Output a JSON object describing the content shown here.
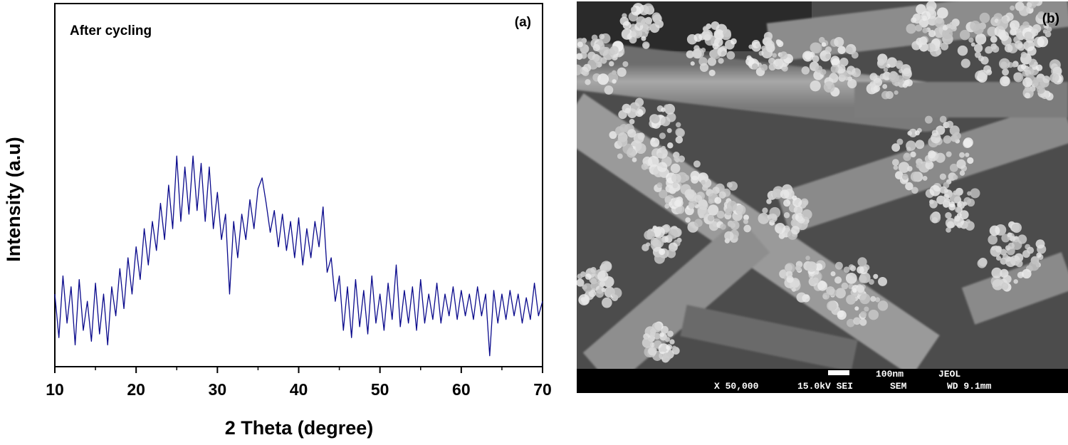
{
  "chart_data": {
    "type": "line",
    "annotation": "After cycling",
    "panel_label": "(a)",
    "x_label": "2 Theta (degree)",
    "y_label": "Intensity (a.u)",
    "xlim": [
      10,
      70
    ],
    "xticks": [
      10,
      20,
      30,
      40,
      50,
      60,
      70
    ],
    "ylim": [
      0,
      100
    ],
    "x": [
      10,
      10.5,
      11,
      11.5,
      12,
      12.5,
      13,
      13.5,
      14,
      14.5,
      15,
      15.5,
      16,
      16.5,
      17,
      17.5,
      18,
      18.5,
      19,
      19.5,
      20,
      20.5,
      21,
      21.5,
      22,
      22.5,
      23,
      23.5,
      24,
      24.5,
      25,
      25.5,
      26,
      26.5,
      27,
      27.5,
      28,
      28.5,
      29,
      29.5,
      30,
      30.5,
      31,
      31.5,
      32,
      32.5,
      33,
      33.5,
      34,
      34.5,
      35,
      35.5,
      36,
      36.5,
      37,
      37.5,
      38,
      38.5,
      39,
      39.5,
      40,
      40.5,
      41,
      41.5,
      42,
      42.5,
      43,
      43.5,
      44,
      44.5,
      45,
      45.5,
      46,
      46.5,
      47,
      47.5,
      48,
      48.5,
      49,
      49.5,
      50,
      50.5,
      51,
      51.5,
      52,
      52.5,
      53,
      53.5,
      54,
      54.5,
      55,
      55.5,
      56,
      56.5,
      57,
      57.5,
      58,
      58.5,
      59,
      59.5,
      60,
      60.5,
      61,
      61.5,
      62,
      62.5,
      63,
      63.5,
      64,
      64.5,
      65,
      65.5,
      66,
      66.5,
      67,
      67.5,
      68,
      68.5,
      69,
      69.5,
      70
    ],
    "series": [
      {
        "color": "#0a0a8c",
        "values": [
          20,
          8,
          25,
          12,
          22,
          6,
          24,
          10,
          18,
          7,
          23,
          9,
          20,
          6,
          22,
          14,
          27,
          16,
          30,
          20,
          33,
          24,
          38,
          28,
          40,
          32,
          45,
          35,
          50,
          38,
          58,
          40,
          55,
          42,
          58,
          43,
          56,
          40,
          55,
          38,
          48,
          35,
          42,
          20,
          40,
          30,
          42,
          35,
          46,
          38,
          49,
          52,
          45,
          37,
          43,
          33,
          42,
          32,
          40,
          30,
          41,
          28,
          38,
          30,
          40,
          33,
          44,
          26,
          30,
          18,
          25,
          10,
          22,
          8,
          24,
          11,
          21,
          9,
          25,
          12,
          20,
          10,
          23,
          13,
          28,
          11,
          21,
          12,
          22,
          10,
          24,
          12,
          20,
          13,
          23,
          12,
          20,
          14,
          22,
          13,
          21,
          14,
          20,
          13,
          22,
          14,
          20,
          3,
          21,
          12,
          20,
          13,
          21,
          14,
          20,
          12,
          19,
          13,
          23,
          14,
          18
        ]
      }
    ]
  },
  "image": {
    "panel_label": "(b)",
    "scale_bar": "100nm",
    "maker": "JEOL",
    "magnification": "X 50,000",
    "voltage": "15.0kV SEI",
    "mode": "SEM",
    "working_distance": "WD 9.1mm"
  }
}
